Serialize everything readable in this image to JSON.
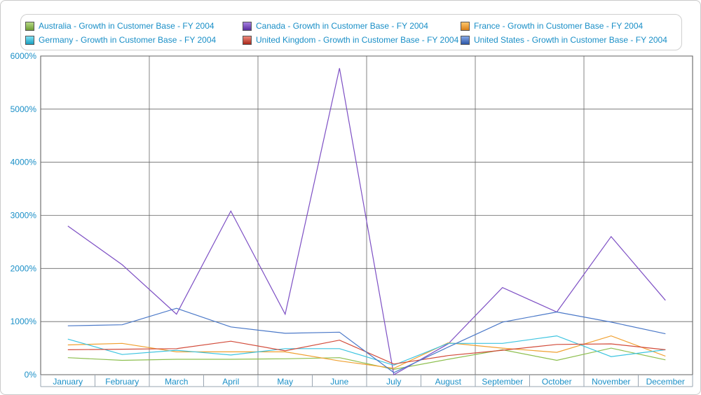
{
  "chart_data": {
    "type": "line",
    "categories": [
      "January",
      "February",
      "March",
      "April",
      "May",
      "June",
      "July",
      "August",
      "September",
      "October",
      "November",
      "December"
    ],
    "y_ticks": [
      "0%",
      "1000%",
      "2000%",
      "3000%",
      "4000%",
      "5000%",
      "6000%"
    ],
    "ylim": [
      0,
      6000
    ],
    "grid": true,
    "legend_position": "top",
    "series": [
      {
        "name": "Australia - Growth in Customer Base - FY 2004",
        "color": "#8dbf4f",
        "values": [
          320,
          270,
          290,
          290,
          300,
          320,
          100,
          290,
          470,
          270,
          500,
          280
        ]
      },
      {
        "name": "Canada - Growth in Customer Base - FY 2004",
        "color": "#7d4fc4",
        "values": [
          2800,
          2070,
          1140,
          3080,
          1140,
          5770,
          0,
          580,
          1640,
          1180,
          2600,
          1400
        ]
      },
      {
        "name": "France - Growth in Customer Base - FY 2004",
        "color": "#f0a030",
        "values": [
          560,
          590,
          430,
          430,
          430,
          260,
          120,
          600,
          500,
          420,
          730,
          350
        ]
      },
      {
        "name": "Germany - Growth in Customer Base - FY 2004",
        "color": "#3cc4e0",
        "values": [
          670,
          380,
          460,
          370,
          490,
          490,
          180,
          590,
          590,
          730,
          340,
          470
        ]
      },
      {
        "name": "United Kingdom - Growth in Customer Base - FY 2004",
        "color": "#d24b3a",
        "values": [
          470,
          480,
          490,
          630,
          450,
          650,
          200,
          360,
          460,
          570,
          580,
          470
        ]
      },
      {
        "name": "United States - Growth in Customer Base - FY 2004",
        "color": "#4a78c8",
        "values": [
          920,
          940,
          1250,
          900,
          780,
          800,
          40,
          520,
          990,
          1180,
          990,
          770
        ]
      }
    ]
  }
}
